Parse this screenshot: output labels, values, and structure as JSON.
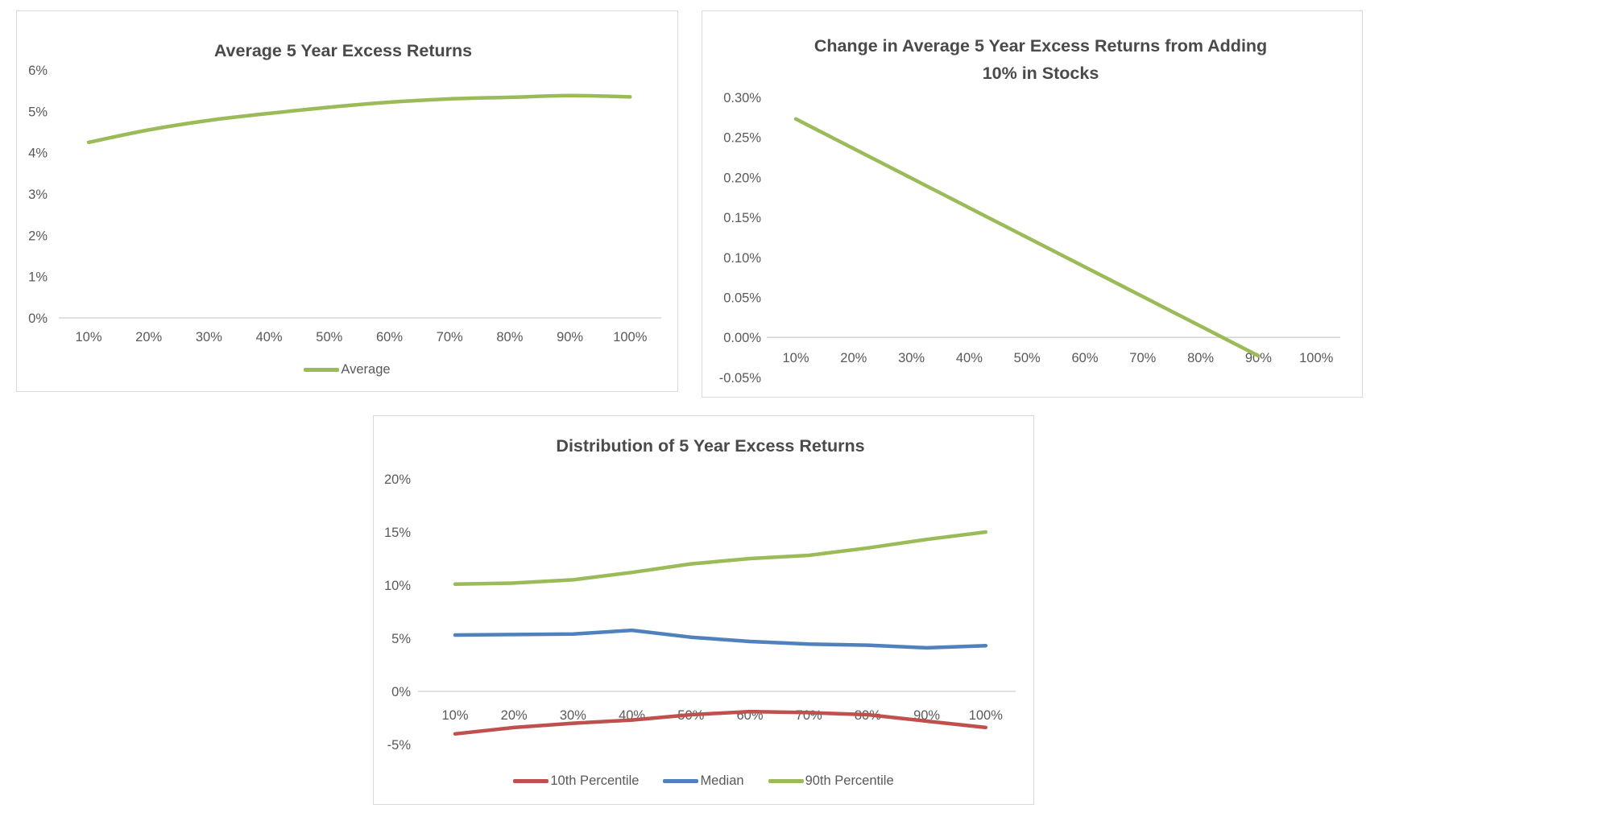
{
  "page": {
    "background": "#ffffff",
    "panel_border_color": "#d9d9d9"
  },
  "chart_data": [
    {
      "id": "average-excess-returns",
      "type": "line",
      "title": "Average 5 Year Excess Returns",
      "title_lines": [
        "Average 5 Year Excess Returns"
      ],
      "xlabel": "",
      "ylabel": "",
      "grid": false,
      "legend_position": "bottom",
      "axis_color": "#d6d6d6",
      "categories": [
        "10%",
        "20%",
        "30%",
        "40%",
        "50%",
        "60%",
        "70%",
        "80%",
        "90%",
        "100%"
      ],
      "y_ticks": [
        {
          "label": "6%",
          "value": 6
        },
        {
          "label": "5%",
          "value": 5
        },
        {
          "label": "4%",
          "value": 4
        },
        {
          "label": "3%",
          "value": 3
        },
        {
          "label": "2%",
          "value": 2
        },
        {
          "label": "1%",
          "value": 1
        },
        {
          "label": "0%",
          "value": 0
        }
      ],
      "ylim": [
        0,
        6
      ],
      "series": [
        {
          "name": "Average",
          "color": "#9BBB59",
          "smooth": true,
          "values": [
            4.25,
            4.55,
            4.78,
            4.95,
            5.1,
            5.22,
            5.3,
            5.34,
            5.38,
            5.35
          ]
        }
      ]
    },
    {
      "id": "change-from-adding-10pct-stocks",
      "type": "line",
      "title": "Change in Average 5 Year Excess Returns from Adding 10% in Stocks",
      "title_lines": [
        "Change in Average 5 Year Excess Returns from Adding",
        "10% in Stocks"
      ],
      "xlabel": "",
      "ylabel": "",
      "grid": false,
      "legend_position": "none",
      "axis_color": "#d6d6d6",
      "categories": [
        "10%",
        "20%",
        "30%",
        "40%",
        "50%",
        "60%",
        "70%",
        "80%",
        "90%",
        "100%"
      ],
      "y_ticks": [
        {
          "label": "0.30%",
          "value": 0.3
        },
        {
          "label": "0.25%",
          "value": 0.25
        },
        {
          "label": "0.20%",
          "value": 0.2
        },
        {
          "label": "0.15%",
          "value": 0.15
        },
        {
          "label": "0.10%",
          "value": 0.1
        },
        {
          "label": "0.05%",
          "value": 0.05
        },
        {
          "label": "0.00%",
          "value": 0.0
        },
        {
          "label": "-0.05%",
          "value": -0.05
        }
      ],
      "ylim": [
        -0.05,
        0.3
      ],
      "series": [
        {
          "color": "#9BBB59",
          "smooth": false,
          "values": [
            0.273,
            0.236,
            0.199,
            0.162,
            0.125,
            0.088,
            0.051,
            0.014,
            -0.023
          ]
        }
      ]
    },
    {
      "id": "distribution-excess-returns",
      "type": "line",
      "title": "Distribution of 5 Year Excess Returns",
      "title_lines": [
        "Distribution of 5 Year Excess Returns"
      ],
      "xlabel": "",
      "ylabel": "",
      "grid": false,
      "legend_position": "bottom",
      "axis_color": "#d6d6d6",
      "categories": [
        "10%",
        "20%",
        "30%",
        "40%",
        "50%",
        "60%",
        "70%",
        "80%",
        "90%",
        "100%"
      ],
      "y_ticks": [
        {
          "label": "20%",
          "value": 20
        },
        {
          "label": "15%",
          "value": 15
        },
        {
          "label": "10%",
          "value": 10
        },
        {
          "label": "5%",
          "value": 5
        },
        {
          "label": "0%",
          "value": 0
        },
        {
          "label": "-5%",
          "value": -5
        }
      ],
      "ylim": [
        -5,
        20
      ],
      "series": [
        {
          "name": "10th Percentile",
          "color": "#C0504D",
          "smooth": false,
          "values": [
            -4.0,
            -3.4,
            -3.0,
            -2.7,
            -2.2,
            -1.9,
            -2.0,
            -2.2,
            -2.8,
            -3.4
          ]
        },
        {
          "name": "Median",
          "color": "#4F81BD",
          "smooth": false,
          "values": [
            5.3,
            5.35,
            5.4,
            5.75,
            5.1,
            4.7,
            4.45,
            4.35,
            4.1,
            4.3
          ]
        },
        {
          "name": "90th Percentile",
          "color": "#9BBB59",
          "smooth": false,
          "values": [
            10.1,
            10.2,
            10.5,
            11.2,
            12.0,
            12.5,
            12.8,
            13.5,
            14.3,
            15.0
          ]
        }
      ]
    }
  ]
}
